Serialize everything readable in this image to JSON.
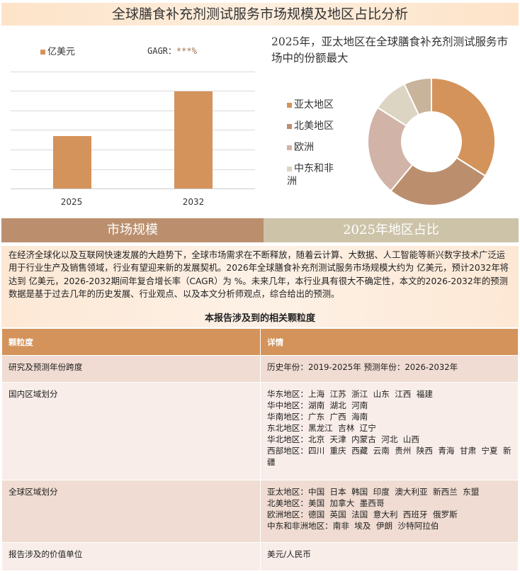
{
  "title": "全球膳食补充剂测试服务市场规模及地区占比分析",
  "chart_data": [
    {
      "type": "bar",
      "categories": [
        "2025",
        "2032"
      ],
      "series": [
        {
          "name": "亿美元",
          "values": [
            2.7,
            5.0
          ]
        }
      ],
      "legend": "top-left",
      "grid": true,
      "annotation": "GAGR：",
      "annotation_value": "***%",
      "color": "#d4935a"
    },
    {
      "type": "pie",
      "donut": true,
      "title": "2025年，亚太地区在全球膳食补充剂测试服务市场中的份额最大",
      "labels": [
        "亚太地区",
        "北美地区",
        "欧洲",
        "中东和非洲",
        ""
      ],
      "values": [
        34,
        27,
        23,
        9,
        7
      ],
      "colors": [
        "#d4935a",
        "#bb8f6e",
        "#d1b3a8",
        "#ddd5c4",
        "#c8b49a"
      ],
      "legend": "left"
    }
  ],
  "sections": {
    "left": "市场规模",
    "right": "2025年地区占比"
  },
  "paragraph": "在经济全球化以及互联网快速发展的大趋势下，全球市场需求在不断释放，随着云计算、大数据、人工智能等新兴数字技术广泛运用于行业生产及销售领域，行业有望迎来新的发展契机。2026年全球膳食补充剂测试服务市场规模大约为 亿美元，预计2032年将达到 亿美元，2026-2032期间年复合增长率（CAGR）为 %。未来几年，本行业具有很大不确定性，本文的2026-2032年的预测数据是基于过去几年的历史发展、行业观点、以及本文分析师观点，综合给出的预测。",
  "subtitle": "本报告涉及到的相关颗粒度",
  "table": {
    "headers": [
      "颗粒度",
      "详情"
    ],
    "rows": [
      {
        "label": "研究及预测年份跨度",
        "lines": [
          "历史年份：2019-2025年 预测年份：2026-2032年"
        ]
      },
      {
        "label": "国内区域划分",
        "lines": [
          "华东地区：上海  江苏  浙江  山东  江西  福建",
          "华中地区：湖南  湖北  河南",
          "华南地区：广东  广西  海南",
          "东北地区：黑龙江  吉林  辽宁",
          "华北地区：北京  天津  内蒙古  河北  山西",
          "西部地区：四川  重庆  西藏  云南  贵州  陕西  青海  甘肃  宁夏  新疆"
        ]
      },
      {
        "label": "全球区域划分",
        "lines": [
          "亚太地区：中国  日本  韩国  印度  澳大利亚  新西兰  东盟",
          "北美地区：美国  加拿大  墨西哥",
          "欧洲地区：德国  英国  法国  意大利  西班牙  俄罗斯",
          "中东和非洲地区：南非  埃及  伊朗  沙特阿拉伯"
        ]
      },
      {
        "label": "报告涉及的价值单位",
        "lines": [
          "美元/人民币"
        ]
      }
    ]
  }
}
